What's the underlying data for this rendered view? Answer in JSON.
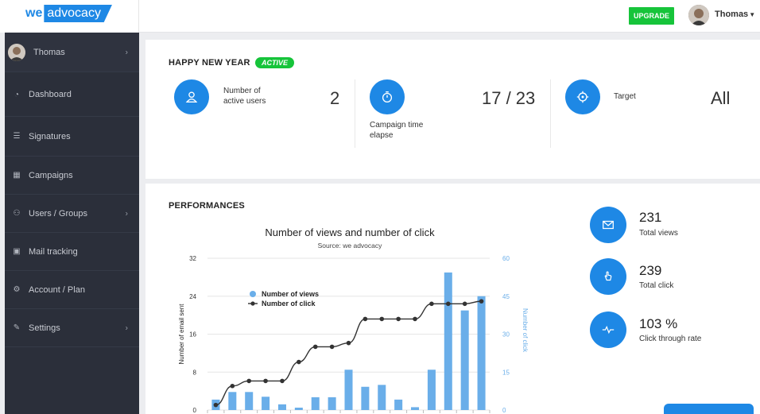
{
  "brand": {
    "we": "we",
    "advocacy": "advocacy"
  },
  "header": {
    "upgrade_label": "UPGRADE",
    "user_name": "Thomas"
  },
  "sidebar": {
    "user": {
      "name": "Thomas"
    },
    "items": [
      {
        "label": "Dashboard",
        "icon": "dashboard-icon",
        "chevron": false
      },
      {
        "label": "Signatures",
        "icon": "signature-list-icon",
        "chevron": false
      },
      {
        "label": "Campaigns",
        "icon": "calendar-icon",
        "chevron": false
      },
      {
        "label": "Users / Groups",
        "icon": "users-icon",
        "chevron": true
      },
      {
        "label": "Mail tracking",
        "icon": "mail-icon",
        "chevron": false
      },
      {
        "label": "Account / Plan",
        "icon": "gear-icon",
        "chevron": false
      },
      {
        "label": "Settings",
        "icon": "wrench-icon",
        "chevron": true
      }
    ]
  },
  "campaign": {
    "title": "HAPPY NEW YEAR",
    "badge": "ACTIVE",
    "stats": [
      {
        "label_1": "Number of",
        "label_2": "active users",
        "value": "2"
      },
      {
        "label_1": "Campaign time",
        "label_2": "elapse",
        "value": "17 / 23"
      },
      {
        "label_1": "Target",
        "label_2": "",
        "value": "All"
      }
    ]
  },
  "performances": {
    "title": "PERFORMANCES",
    "kpis": [
      {
        "value": "231",
        "label": "Total views",
        "icon": "envelope-icon"
      },
      {
        "value": "239",
        "label": "Total click",
        "icon": "pointer-hand-icon"
      },
      {
        "value": "103 %",
        "label": "Click through rate",
        "icon": "pulse-icon"
      }
    ]
  },
  "chart_data": {
    "type": "bar",
    "title": "Number of views and number of click",
    "subtitle": "Source: we advocacy",
    "ylabel": "Number of email sent",
    "y2label": "Number of click",
    "ylim": [
      0,
      32
    ],
    "y2lim": [
      0,
      60
    ],
    "yticks": [
      "0",
      "8",
      "16",
      "24",
      "32"
    ],
    "y2ticks": [
      "0",
      "15",
      "30",
      "45",
      "60"
    ],
    "legend_position": "top-left",
    "colors": {
      "views": "#6aaee9",
      "clicks": "#333333",
      "axis2": "#6aaee9"
    },
    "series": [
      {
        "name": "Number of views",
        "type": "bar",
        "axis": "left",
        "values": [
          2.2,
          3.8,
          3.8,
          2.8,
          1.2,
          0.5,
          2.7,
          2.7,
          8.5,
          4.9,
          5.3,
          2.2,
          0.6,
          8.5,
          29,
          21,
          24
        ]
      },
      {
        "name": "Number of click",
        "type": "line",
        "axis": "right",
        "values": [
          2,
          9.5,
          11.5,
          11.5,
          11.5,
          19,
          25,
          25,
          26.5,
          36,
          36,
          36,
          36,
          42,
          42,
          42,
          43
        ]
      }
    ]
  }
}
